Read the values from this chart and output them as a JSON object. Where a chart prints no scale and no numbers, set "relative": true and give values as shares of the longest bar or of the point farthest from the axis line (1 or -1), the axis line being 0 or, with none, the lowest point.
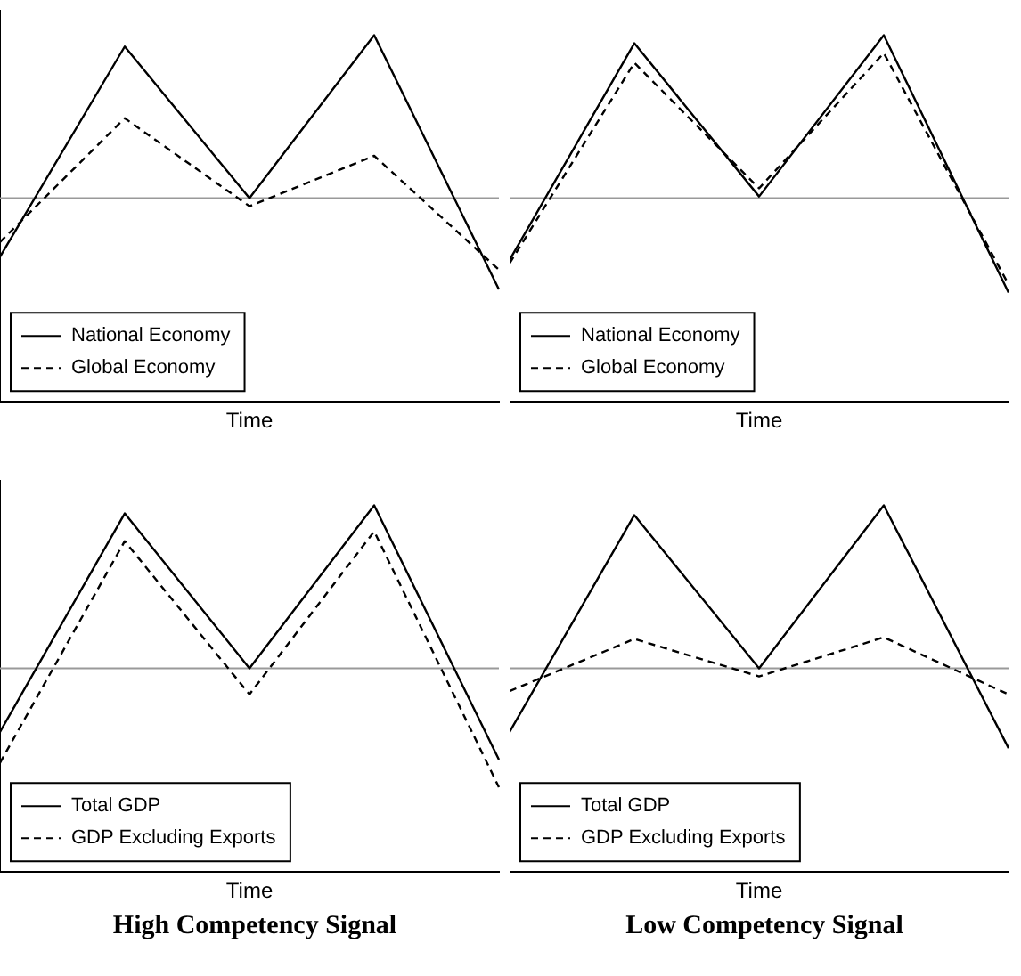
{
  "chart_data": [
    {
      "type": "line",
      "xlabel": "Time",
      "categories": [
        null,
        null,
        null,
        null,
        null
      ],
      "relative": true,
      "grid": false,
      "tick_labels": false,
      "marker": "none",
      "legend": "bottom left",
      "ref_lines": [
        {
          "axis": "y",
          "value": 0,
          "color": "#999999"
        }
      ],
      "series": [
        {
          "name": "National Economy",
          "color": "#000000",
          "line_style": "solid",
          "values": [
            -0.36,
            0.93,
            0,
            1,
            -0.56
          ]
        },
        {
          "name": "Global Economy",
          "color": "#000000",
          "line_style": "dashed",
          "values": [
            -0.27,
            0.49,
            -0.05,
            0.26,
            -0.44
          ]
        }
      ]
    },
    {
      "type": "line",
      "xlabel": "Time",
      "categories": [
        null,
        null,
        null,
        null,
        null
      ],
      "relative": true,
      "grid": false,
      "tick_labels": false,
      "marker": "none",
      "legend": "bottom left",
      "ref_lines": [
        {
          "axis": "y",
          "value": 0,
          "color": "#999999"
        }
      ],
      "series": [
        {
          "name": "National Economy",
          "color": "#000000",
          "line_style": "solid",
          "values": [
            -0.38,
            0.95,
            0.01,
            1,
            -0.58
          ]
        },
        {
          "name": "Global Economy",
          "color": "#000000",
          "line_style": "dashed",
          "values": [
            -0.4,
            0.83,
            0.06,
            0.89,
            -0.53
          ]
        }
      ]
    },
    {
      "type": "line",
      "xlabel": "Time",
      "categories": [
        null,
        null,
        null,
        null,
        null
      ],
      "relative": true,
      "grid": false,
      "tick_labels": false,
      "marker": "none",
      "legend": "bottom left",
      "ref_lines": [
        {
          "axis": "y",
          "value": 0,
          "color": "#999999"
        }
      ],
      "annotations": [
        "High Competency Signal"
      ],
      "series": [
        {
          "name": "Total GDP",
          "color": "#000000",
          "line_style": "solid",
          "values": [
            -0.39,
            0.95,
            0,
            1,
            -0.56
          ]
        },
        {
          "name": "GDP Excluding Exports",
          "color": "#000000",
          "line_style": "dashed",
          "values": [
            -0.58,
            0.78,
            -0.16,
            0.84,
            -0.73
          ]
        }
      ]
    },
    {
      "type": "line",
      "xlabel": "Time",
      "categories": [
        null,
        null,
        null,
        null,
        null
      ],
      "relative": true,
      "grid": false,
      "tick_labels": false,
      "marker": "none",
      "legend": "bottom left",
      "ref_lines": [
        {
          "axis": "y",
          "value": 0,
          "color": "#999999"
        }
      ],
      "annotations": [
        "Low Competency Signal"
      ],
      "series": [
        {
          "name": "Total GDP",
          "color": "#000000",
          "line_style": "solid",
          "values": [
            -0.39,
            0.94,
            0,
            1,
            -0.49
          ]
        },
        {
          "name": "GDP Excluding Exports",
          "color": "#000000",
          "line_style": "dashed",
          "values": [
            -0.14,
            0.18,
            -0.05,
            0.19,
            -0.16
          ]
        }
      ]
    }
  ]
}
